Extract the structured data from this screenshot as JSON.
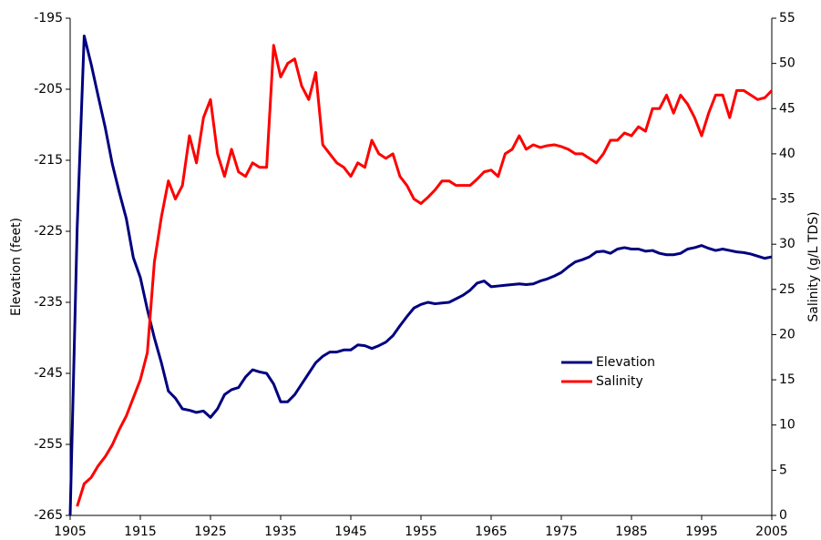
{
  "chart_data": {
    "type": "line",
    "x": [
      1905,
      1906,
      1907,
      1908,
      1909,
      1910,
      1911,
      1912,
      1913,
      1914,
      1915,
      1916,
      1917,
      1918,
      1919,
      1920,
      1921,
      1922,
      1923,
      1924,
      1925,
      1926,
      1927,
      1928,
      1929,
      1930,
      1931,
      1932,
      1933,
      1934,
      1935,
      1936,
      1937,
      1938,
      1939,
      1940,
      1941,
      1942,
      1943,
      1944,
      1945,
      1946,
      1947,
      1948,
      1949,
      1950,
      1951,
      1952,
      1953,
      1954,
      1955,
      1956,
      1957,
      1958,
      1959,
      1960,
      1961,
      1962,
      1963,
      1964,
      1965,
      1966,
      1967,
      1968,
      1969,
      1970,
      1971,
      1972,
      1973,
      1974,
      1975,
      1976,
      1977,
      1978,
      1979,
      1980,
      1981,
      1982,
      1983,
      1984,
      1985,
      1986,
      1987,
      1988,
      1989,
      1990,
      1991,
      1992,
      1993,
      1994,
      1995,
      1996,
      1997,
      1998,
      1999,
      2000,
      2001,
      2002,
      2003,
      2004,
      2005
    ],
    "series": [
      {
        "name": "Elevation",
        "color": "#000080",
        "axis": "y",
        "values": [
          -265,
          -224.5,
          -197.5,
          -201.5,
          -206,
          -210.4,
          -215.5,
          -219.5,
          -223.2,
          -228.7,
          -231.5,
          -236,
          -240,
          -243.5,
          -247.5,
          -248.5,
          -250,
          -250.2,
          -250.5,
          -250.3,
          -251.2,
          -250,
          -248,
          -247.3,
          -247,
          -245.5,
          -244.5,
          -244.8,
          -245,
          -246.5,
          -249,
          -249,
          -248,
          -246.5,
          -245,
          -243.5,
          -242.6,
          -242,
          -242,
          -241.7,
          -241.7,
          -241,
          -241.1,
          -241.5,
          -241.1,
          -240.6,
          -239.7,
          -238.3,
          -237,
          -235.8,
          -235.3,
          -235,
          -235.2,
          -235.1,
          -235,
          -234.5,
          -234,
          -233.3,
          -232.3,
          -232,
          -232.8,
          -232.7,
          -232.6,
          -232.5,
          -232.4,
          -232.5,
          -232.4,
          -232,
          -231.7,
          -231.3,
          -230.8,
          -230,
          -229.3,
          -229,
          -228.6,
          -227.9,
          -227.8,
          -228.1,
          -227.5,
          -227.3,
          -227.5,
          -227.5,
          -227.8,
          -227.7,
          -228.1,
          -228.3,
          -228.3,
          -228.1,
          -227.5,
          -227.3,
          -227,
          -227.4,
          -227.7,
          -227.5,
          -227.7,
          -227.9,
          -228,
          -228.2,
          -228.5,
          -228.8,
          -228.6
        ]
      },
      {
        "name": "Salinity",
        "color": "#ff0000",
        "axis": "y2",
        "values": [
          null,
          1,
          3.5,
          4.2,
          5.5,
          6.5,
          7.8,
          9.5,
          11,
          13,
          15,
          18,
          28,
          33,
          37,
          35,
          36.5,
          42,
          39,
          44,
          46,
          40,
          37.5,
          40.5,
          38,
          37.5,
          39,
          38.5,
          38.5,
          52,
          48.5,
          50,
          50.5,
          47.5,
          46,
          49,
          41,
          40,
          39,
          38.5,
          37.5,
          39,
          38.5,
          41.5,
          40,
          39.5,
          40,
          37.5,
          36.5,
          35,
          34.5,
          35.2,
          36,
          37,
          37,
          36.5,
          36.5,
          36.5,
          37.2,
          38,
          38.2,
          37.5,
          40,
          40.5,
          42,
          40.5,
          41,
          40.7,
          40.9,
          41,
          40.8,
          40.5,
          40,
          40,
          39.5,
          39,
          40,
          41.5,
          41.5,
          42.3,
          42,
          43,
          42.5,
          45,
          45,
          46.5,
          44.5,
          46.5,
          45.5,
          44,
          42,
          44.5,
          46.5,
          46.5,
          44,
          47,
          47,
          46.5,
          46,
          46.2,
          47
        ]
      }
    ],
    "xlim": [
      1905,
      2005
    ],
    "xticks": [
      1905,
      1915,
      1925,
      1935,
      1945,
      1955,
      1965,
      1975,
      1985,
      1995,
      2005
    ],
    "ylim": [
      -265,
      -195
    ],
    "yticks": [
      -265,
      -255,
      -245,
      -235,
      -225,
      -215,
      -205,
      -195
    ],
    "y2lim": [
      0,
      55
    ],
    "y2ticks": [
      0,
      5,
      10,
      15,
      20,
      25,
      30,
      35,
      40,
      45,
      50,
      55
    ],
    "ylabel": "Elevation (feet)",
    "y2label": "Salinity (g/L TDS)"
  }
}
